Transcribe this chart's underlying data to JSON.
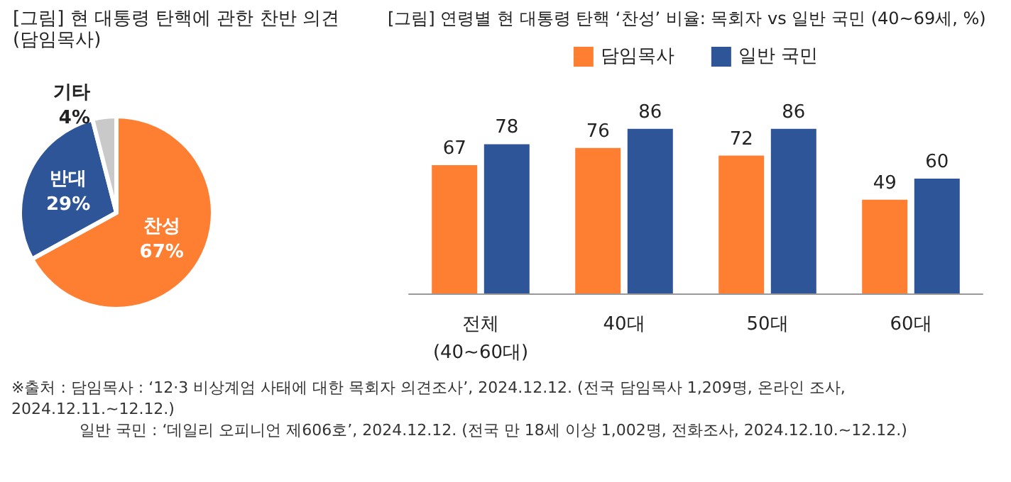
{
  "chart_data": [
    {
      "type": "pie",
      "title": "[그림] 현 대통령 탄핵에 관한 찬반 의견",
      "subtitle": "(담임목사)",
      "categories": [
        "찬성",
        "반대",
        "기타"
      ],
      "values": [
        67,
        29,
        4
      ],
      "value_labels": [
        "67%",
        "29%",
        "4%"
      ],
      "colors": [
        "#ff7f32",
        "#2e5597",
        "#c9c9c9"
      ],
      "legend": false,
      "annotations": [
        "※출처 : 담임목사 : ‘12·3 비상계엄 사태에 대한 목회자 의견조사’, 2024.12.12. (전국 담임목사 1,209명, 온라인 조사, 2024.12.11.~12.12.)",
        "일반 국민 : ‘데일리 오피니언 제606호’, 2024.12.12. (전국 만 18세 이상 1,002명, 전화조사, 2024.12.10.~12.12.)"
      ]
    },
    {
      "type": "bar",
      "title": "[그림] 연령별 현 대통령 탄핵 ‘찬성’ 비율: 목회자 vs 일반 국민 (40~69세, %)",
      "categories": [
        "전체\n(40~60대)",
        "40대",
        "50대",
        "60대"
      ],
      "series": [
        {
          "name": "담임목사",
          "color": "#ff7f32",
          "values": [
            67,
            76,
            72,
            49
          ]
        },
        {
          "name": "일반 국민",
          "color": "#2e5597",
          "values": [
            78,
            86,
            86,
            60
          ]
        }
      ],
      "data_labels": true,
      "legend": "top",
      "grid": false,
      "tick_labels": "x"
    }
  ]
}
